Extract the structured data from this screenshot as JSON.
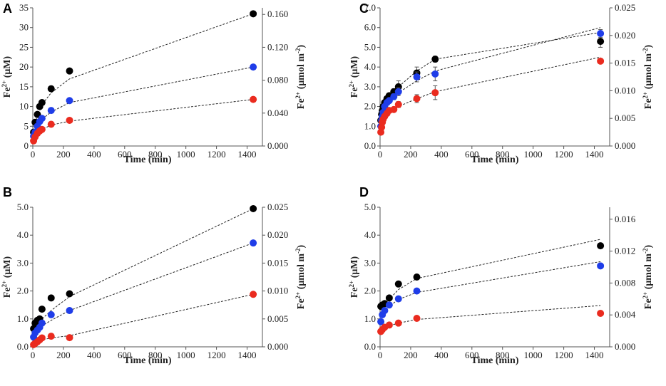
{
  "figure_title": "",
  "chart_data": [
    {
      "panel": "A",
      "type": "scatter",
      "xlabel": "Time (min)",
      "ylabel_left": "Fe2+ (μM)",
      "ylabel_right": "Fe2+ (μmol m-2)",
      "xlim": [
        0,
        1500
      ],
      "ylim_left": [
        0,
        35
      ],
      "ylim_right": [
        0,
        0.168
      ],
      "x_ticks": [
        "0",
        "200",
        "400",
        "600",
        "800",
        "1000",
        "1200",
        "1400"
      ],
      "y_left_ticks": [
        "0",
        "5",
        "10",
        "15",
        "20",
        "25",
        "30",
        "35"
      ],
      "y_right_ticks": [
        "0.000",
        "0.040",
        "0.080",
        "0.120",
        "0.160"
      ],
      "series": [
        {
          "name": "black",
          "color": "#000000",
          "x": [
            5,
            15,
            30,
            45,
            60,
            120,
            240,
            1440
          ],
          "y": [
            3.5,
            6,
            8,
            10,
            11,
            14.5,
            19,
            33.5
          ],
          "fit": [
            [
              5,
              4.8
            ],
            [
              60,
              10.5
            ],
            [
              120,
              13.5
            ],
            [
              240,
              17
            ],
            [
              1440,
              33.5
            ]
          ]
        },
        {
          "name": "blue",
          "color": "#1f3de8",
          "x": [
            5,
            15,
            30,
            45,
            60,
            120,
            240,
            1440
          ],
          "y": [
            2.5,
            3.5,
            5,
            6.2,
            7,
            9,
            11.5,
            20
          ],
          "fit": [
            [
              5,
              3
            ],
            [
              60,
              6.8
            ],
            [
              120,
              8.6
            ],
            [
              240,
              11
            ],
            [
              1440,
              20
            ]
          ]
        },
        {
          "name": "red",
          "color": "#ea2b1f",
          "x": [
            5,
            15,
            30,
            45,
            60,
            120,
            240,
            1440
          ],
          "y": [
            1.3,
            2.3,
            3.2,
            3.8,
            4.2,
            5.5,
            6.5,
            11.8
          ],
          "fit": [
            [
              5,
              1.8
            ],
            [
              60,
              4.2
            ],
            [
              120,
              5.3
            ],
            [
              240,
              6.3
            ],
            [
              1440,
              11.8
            ]
          ]
        }
      ]
    },
    {
      "panel": "B",
      "type": "scatter",
      "xlabel": "Time (min)",
      "ylabel_left": "Fe2+ (μM)",
      "ylabel_right": "Fe2+ (μmol m-2)",
      "xlim": [
        0,
        1500
      ],
      "ylim_left": [
        0,
        5
      ],
      "ylim_right": [
        0,
        0.025
      ],
      "x_ticks": [
        "0",
        "200",
        "400",
        "600",
        "800",
        "1000",
        "1200",
        "1400"
      ],
      "y_left_ticks": [
        "0.0",
        "1.0",
        "2.0",
        "3.0",
        "4.0",
        "5.0"
      ],
      "y_right_ticks": [
        "0.000",
        "0.005",
        "0.010",
        "0.015",
        "0.020",
        "0.025"
      ],
      "series": [
        {
          "name": "black",
          "color": "#000000",
          "x": [
            5,
            15,
            30,
            45,
            60,
            120,
            240,
            1440
          ],
          "y": [
            0.65,
            0.85,
            0.95,
            1.0,
            1.35,
            1.75,
            1.9,
            4.95
          ],
          "fit": [
            [
              5,
              0.6
            ],
            [
              60,
              1.0
            ],
            [
              120,
              1.3
            ],
            [
              240,
              1.8
            ],
            [
              1440,
              4.95
            ]
          ]
        },
        {
          "name": "blue",
          "color": "#1f3de8",
          "x": [
            5,
            15,
            30,
            45,
            60,
            120,
            240,
            1440
          ],
          "y": [
            0.35,
            0.5,
            0.6,
            0.7,
            0.85,
            1.15,
            1.3,
            3.72
          ],
          "fit": [
            [
              5,
              0.3
            ],
            [
              60,
              0.75
            ],
            [
              120,
              0.95
            ],
            [
              240,
              1.3
            ],
            [
              1440,
              3.72
            ]
          ]
        },
        {
          "name": "red",
          "color": "#ea2b1f",
          "x": [
            5,
            15,
            30,
            45,
            60,
            120,
            240,
            1440
          ],
          "y": [
            0.08,
            0.12,
            0.18,
            0.25,
            0.32,
            0.38,
            0.33,
            1.88
          ],
          "fit": [
            [
              5,
              0.1
            ],
            [
              60,
              0.25
            ],
            [
              120,
              0.32
            ],
            [
              240,
              0.4
            ],
            [
              1440,
              1.88
            ]
          ]
        }
      ]
    },
    {
      "panel": "C",
      "type": "scatter",
      "xlabel": "Time (min)",
      "ylabel_left": "Fe2+ (μM)",
      "ylabel_right": "Fe2+ (μmol m-2)",
      "xlim": [
        0,
        1500
      ],
      "ylim_left": [
        0,
        7
      ],
      "ylim_right": [
        0,
        0.025
      ],
      "x_ticks": [
        "0",
        "200",
        "400",
        "600",
        "800",
        "1000",
        "1200",
        "1400"
      ],
      "y_left_ticks": [
        "0.0",
        "1.0",
        "2.0",
        "3.0",
        "4.0",
        "5.0",
        "6.0",
        "7.0"
      ],
      "y_right_ticks": [
        "0.000",
        "0.005",
        "0.010",
        "0.015",
        "0.020",
        "0.025"
      ],
      "series": [
        {
          "name": "black",
          "color": "#000000",
          "x": [
            5,
            10,
            15,
            20,
            30,
            45,
            60,
            90,
            120,
            240,
            360,
            1440
          ],
          "y": [
            1.3,
            1.6,
            1.8,
            2.0,
            2.2,
            2.4,
            2.55,
            2.75,
            3.0,
            3.7,
            4.4,
            5.3
          ],
          "err": [
            0.1,
            0.1,
            0.1,
            0.1,
            0.1,
            0.1,
            0.1,
            0.15,
            0.3,
            0.3,
            0.15,
            0.3
          ],
          "fit": [
            [
              5,
              1.3
            ],
            [
              60,
              2.5
            ],
            [
              120,
              3.0
            ],
            [
              240,
              3.8
            ],
            [
              360,
              4.4
            ],
            [
              1440,
              5.75
            ]
          ]
        },
        {
          "name": "blue",
          "color": "#1f3de8",
          "x": [
            5,
            10,
            15,
            20,
            30,
            45,
            60,
            90,
            120,
            240,
            360,
            1440
          ],
          "y": [
            1.0,
            1.3,
            1.5,
            1.7,
            2.0,
            2.2,
            2.3,
            2.5,
            2.75,
            3.5,
            3.65,
            5.7
          ],
          "err": [
            0.1,
            0.1,
            0.1,
            0.1,
            0.1,
            0.1,
            0.1,
            0.15,
            0.2,
            0.25,
            0.35,
            0.2
          ],
          "fit": [
            [
              5,
              1.1
            ],
            [
              60,
              2.3
            ],
            [
              120,
              2.7
            ],
            [
              240,
              3.3
            ],
            [
              360,
              3.8
            ],
            [
              1440,
              6.0
            ]
          ]
        },
        {
          "name": "red",
          "color": "#ea2b1f",
          "x": [
            5,
            10,
            15,
            20,
            30,
            45,
            60,
            90,
            120,
            240,
            360,
            1440
          ],
          "y": [
            0.7,
            0.95,
            1.2,
            1.35,
            1.5,
            1.65,
            1.8,
            1.85,
            2.1,
            2.4,
            2.7,
            4.3
          ],
          "err": [
            0.1,
            0.1,
            0.1,
            0.1,
            0.1,
            0.1,
            0.1,
            0.1,
            0.15,
            0.2,
            0.35,
            0.1
          ],
          "fit": [
            [
              5,
              0.8
            ],
            [
              60,
              1.7
            ],
            [
              120,
              2.0
            ],
            [
              240,
              2.4
            ],
            [
              360,
              2.75
            ],
            [
              1440,
              4.5
            ]
          ]
        }
      ]
    },
    {
      "panel": "D",
      "type": "scatter",
      "xlabel": "Time (min)",
      "ylabel_left": "Fe2+ (μM)",
      "ylabel_right": "Fe2+ (μmol m-2)",
      "xlim": [
        0,
        1500
      ],
      "ylim_left": [
        0,
        5
      ],
      "ylim_right": [
        0,
        0.0175
      ],
      "x_ticks": [
        "0",
        "200",
        "400",
        "600",
        "800",
        "1000",
        "1200",
        "1400"
      ],
      "y_left_ticks": [
        "0.0",
        "1.0",
        "2.0",
        "3.0",
        "4.0",
        "5.0"
      ],
      "y_right_ticks": [
        "0.000",
        "0.004",
        "0.008",
        "0.012",
        "0.016"
      ],
      "series": [
        {
          "name": "black",
          "color": "#000000",
          "x": [
            5,
            15,
            30,
            60,
            120,
            240,
            1440
          ],
          "y": [
            1.45,
            1.5,
            1.55,
            1.75,
            2.25,
            2.5,
            3.62
          ],
          "fit": [
            [
              5,
              1.4
            ],
            [
              60,
              1.7
            ],
            [
              120,
              2.05
            ],
            [
              240,
              2.45
            ],
            [
              1440,
              3.85
            ]
          ]
        },
        {
          "name": "blue",
          "color": "#1f3de8",
          "x": [
            5,
            15,
            30,
            60,
            120,
            240,
            1440
          ],
          "y": [
            0.9,
            1.15,
            1.3,
            1.5,
            1.72,
            2.0,
            2.9
          ],
          "fit": [
            [
              5,
              0.95
            ],
            [
              60,
              1.45
            ],
            [
              120,
              1.7
            ],
            [
              240,
              1.95
            ],
            [
              1440,
              3.05
            ]
          ]
        },
        {
          "name": "red",
          "color": "#ea2b1f",
          "x": [
            5,
            15,
            30,
            60,
            120,
            240,
            1440
          ],
          "y": [
            0.55,
            0.62,
            0.7,
            0.78,
            0.85,
            1.02,
            1.2
          ],
          "fit": [
            [
              5,
              0.55
            ],
            [
              60,
              0.75
            ],
            [
              120,
              0.85
            ],
            [
              240,
              0.98
            ],
            [
              1440,
              1.48
            ]
          ]
        }
      ]
    }
  ]
}
